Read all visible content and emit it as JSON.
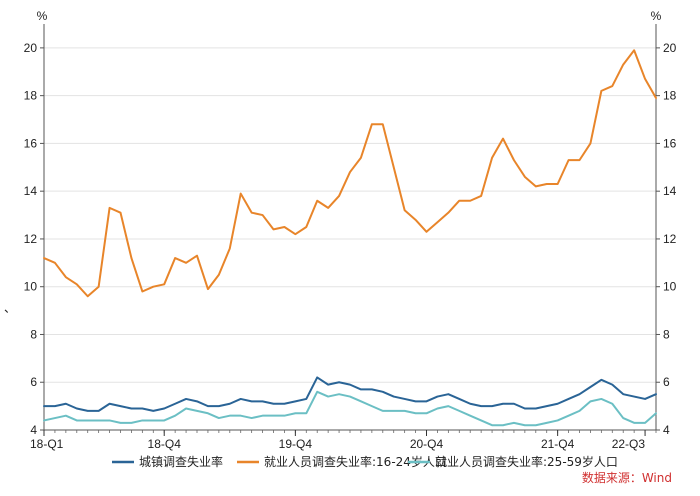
{
  "chart_data": {
    "type": "line",
    "title": "",
    "y_unit_left": "%",
    "y_unit_right": "%",
    "ylim": [
      4,
      21
    ],
    "yticks": [
      4,
      6,
      8,
      10,
      12,
      14,
      16,
      18,
      20
    ],
    "x_tick_labels": [
      {
        "index": 0,
        "label": "18-Q1"
      },
      {
        "index": 11,
        "label": "18-Q4"
      },
      {
        "index": 23,
        "label": "19-Q4"
      },
      {
        "index": 35,
        "label": "20-Q4"
      },
      {
        "index": 47,
        "label": "21-Q4"
      },
      {
        "index": 55,
        "label": "22-Q3"
      }
    ],
    "legend_position": "bottom",
    "series": [
      {
        "name": "城镇调查失业率",
        "color": "#2a6496",
        "values": [
          5.0,
          5.0,
          5.1,
          4.9,
          4.8,
          4.8,
          5.1,
          5.0,
          4.9,
          4.9,
          4.8,
          4.9,
          5.1,
          5.3,
          5.2,
          5.0,
          5.0,
          5.1,
          5.3,
          5.2,
          5.2,
          5.1,
          5.1,
          5.2,
          5.3,
          6.2,
          5.9,
          6.0,
          5.9,
          5.7,
          5.7,
          5.6,
          5.4,
          5.3,
          5.2,
          5.2,
          5.4,
          5.5,
          5.3,
          5.1,
          5.0,
          5.0,
          5.1,
          5.1,
          4.9,
          4.9,
          5.0,
          5.1,
          5.3,
          5.5,
          5.8,
          6.1,
          5.9,
          5.5,
          5.4,
          5.3,
          5.5
        ]
      },
      {
        "name": "就业人员调查失业率:16-24岁人口",
        "color": "#e8852a",
        "values": [
          11.2,
          11.0,
          10.4,
          10.1,
          9.6,
          10.0,
          13.3,
          13.1,
          11.2,
          9.8,
          10.0,
          10.1,
          11.2,
          11.0,
          11.3,
          9.9,
          10.5,
          11.6,
          13.9,
          13.1,
          13.0,
          12.4,
          12.5,
          12.2,
          12.5,
          13.6,
          13.3,
          13.8,
          14.8,
          15.4,
          16.8,
          16.8,
          15.0,
          13.2,
          12.8,
          12.3,
          12.7,
          13.1,
          13.6,
          13.6,
          13.8,
          15.4,
          16.2,
          15.3,
          14.6,
          14.2,
          14.3,
          14.3,
          15.3,
          15.3,
          16.0,
          18.2,
          18.4,
          19.3,
          19.9,
          18.7,
          17.9
        ]
      },
      {
        "name": "就业人员调查失业率:25-59岁人口",
        "color": "#6bbfc4",
        "values": [
          4.4,
          4.5,
          4.6,
          4.4,
          4.4,
          4.4,
          4.4,
          4.3,
          4.3,
          4.4,
          4.4,
          4.4,
          4.6,
          4.9,
          4.8,
          4.7,
          4.5,
          4.6,
          4.6,
          4.5,
          4.6,
          4.6,
          4.6,
          4.7,
          4.7,
          5.6,
          5.4,
          5.5,
          5.4,
          5.2,
          5.0,
          4.8,
          4.8,
          4.8,
          4.7,
          4.7,
          4.9,
          5.0,
          4.8,
          4.6,
          4.4,
          4.2,
          4.2,
          4.3,
          4.2,
          4.2,
          4.3,
          4.4,
          4.6,
          4.8,
          5.2,
          5.3,
          5.1,
          4.5,
          4.3,
          4.3,
          4.7
        ]
      }
    ]
  },
  "source_text": "数据来源：Wind",
  "stray_mark": "、"
}
